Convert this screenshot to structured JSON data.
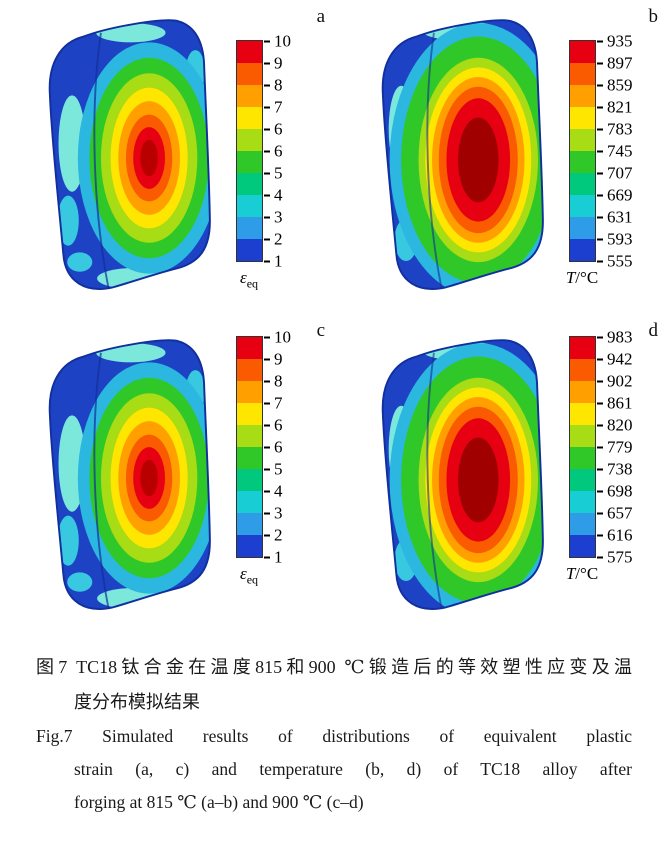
{
  "panels": [
    {
      "letter": "a",
      "kind": "equivalent-plastic-strain",
      "ticks": [
        "10",
        "9",
        "8",
        "7",
        "6",
        "6",
        "5",
        "4",
        "3",
        "2",
        "1"
      ],
      "unit": {
        "symbol": "ε",
        "sub": "eq",
        "suffix": ""
      }
    },
    {
      "letter": "b",
      "kind": "temperature",
      "ticks": [
        "935",
        "897",
        "859",
        "821",
        "783",
        "745",
        "707",
        "669",
        "631",
        "593",
        "555"
      ],
      "unit": {
        "symbol": "T",
        "sub": "",
        "suffix": "/°C"
      }
    },
    {
      "letter": "c",
      "kind": "equivalent-plastic-strain",
      "ticks": [
        "10",
        "9",
        "8",
        "7",
        "6",
        "6",
        "5",
        "4",
        "3",
        "2",
        "1"
      ],
      "unit": {
        "symbol": "ε",
        "sub": "eq",
        "suffix": ""
      }
    },
    {
      "letter": "d",
      "kind": "temperature",
      "ticks": [
        "983",
        "942",
        "902",
        "861",
        "820",
        "779",
        "738",
        "698",
        "657",
        "616",
        "575"
      ],
      "unit": {
        "symbol": "T",
        "sub": "",
        "suffix": "/°C"
      }
    }
  ],
  "colormap": [
    "#e60012",
    "#fa5a00",
    "#ffa000",
    "#ffe600",
    "#a8dc14",
    "#30c828",
    "#00c87d",
    "#18cdd4",
    "#2e9ce6",
    "#1d3fd0"
  ],
  "caption": {
    "cn_line1": "图7 TC18钛合金在温度815和900 ℃锻造后的等效塑性应变及温",
    "cn_line2": "度分布模拟结果",
    "en_line1": "Fig.7 Simulated results of distributions of equivalent plastic",
    "en_line2": "strain (a, c) and temperature (b, d) of TC18 alloy after",
    "en_line3": "forging at 815 ℃ (a–b) and 900 ℃ (c–d)"
  }
}
